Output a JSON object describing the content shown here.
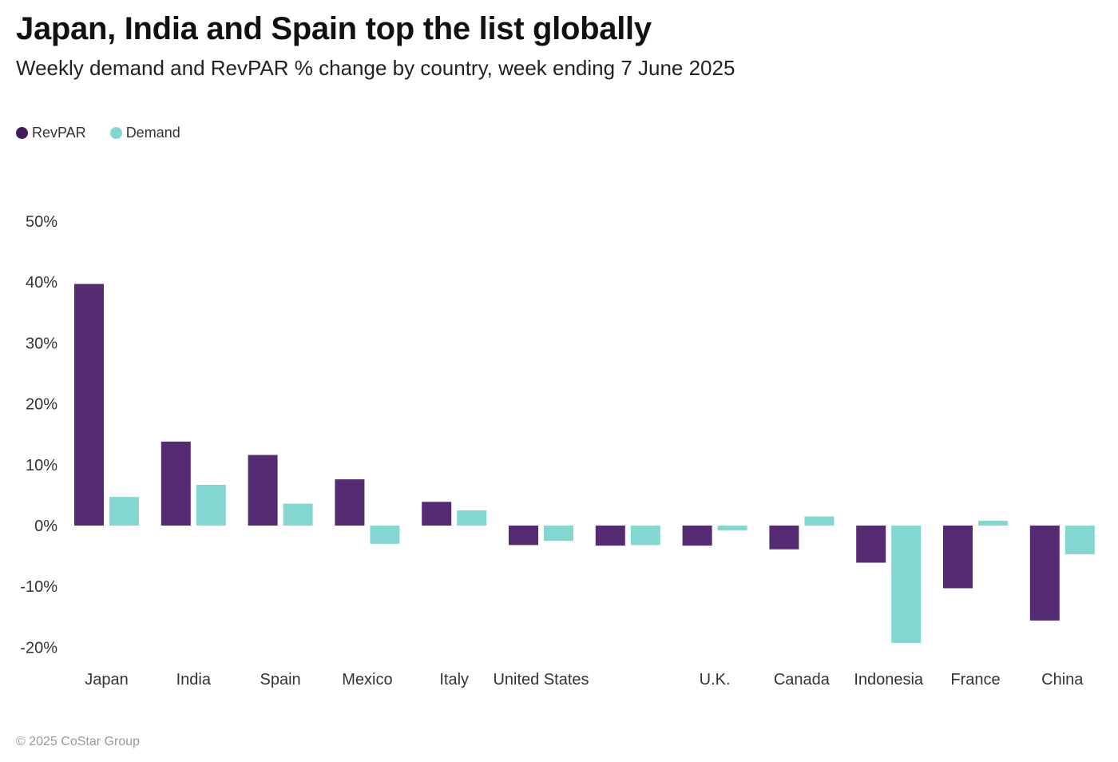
{
  "chart_data": {
    "type": "bar",
    "title": "Japan, India and Spain top the list globally",
    "subtitle": "Weekly demand and RevPAR % change by country, week ending 7 June 2025",
    "categories": [
      "Japan",
      "India",
      "Spain",
      "Mexico",
      "Italy",
      "United States",
      "",
      "U.K.",
      "Canada",
      "Indonesia",
      "France",
      "China"
    ],
    "series": [
      {
        "name": "RevPAR",
        "color": "#552c73",
        "values": [
          39.7,
          13.8,
          11.6,
          7.6,
          3.9,
          -3.2,
          -3.3,
          -3.3,
          -3.9,
          -6.1,
          -10.3,
          -15.6
        ]
      },
      {
        "name": "Demand",
        "color": "#84d6d1",
        "values": [
          4.7,
          6.7,
          3.6,
          -3.0,
          2.5,
          -2.5,
          -3.2,
          -0.8,
          1.5,
          -19.3,
          0.8,
          -4.7
        ]
      }
    ],
    "yticks": [
      "50%",
      "40%",
      "30%",
      "20%",
      "10%",
      "0%",
      "-10%",
      "-20%"
    ],
    "ytick_values": [
      50,
      40,
      30,
      20,
      10,
      0,
      -10,
      -20
    ],
    "ylim": [
      -20,
      50
    ],
    "xlabel": "",
    "ylabel": "",
    "legend_position": "top-left",
    "grid": false
  },
  "footer": "© 2025 CoStar Group"
}
